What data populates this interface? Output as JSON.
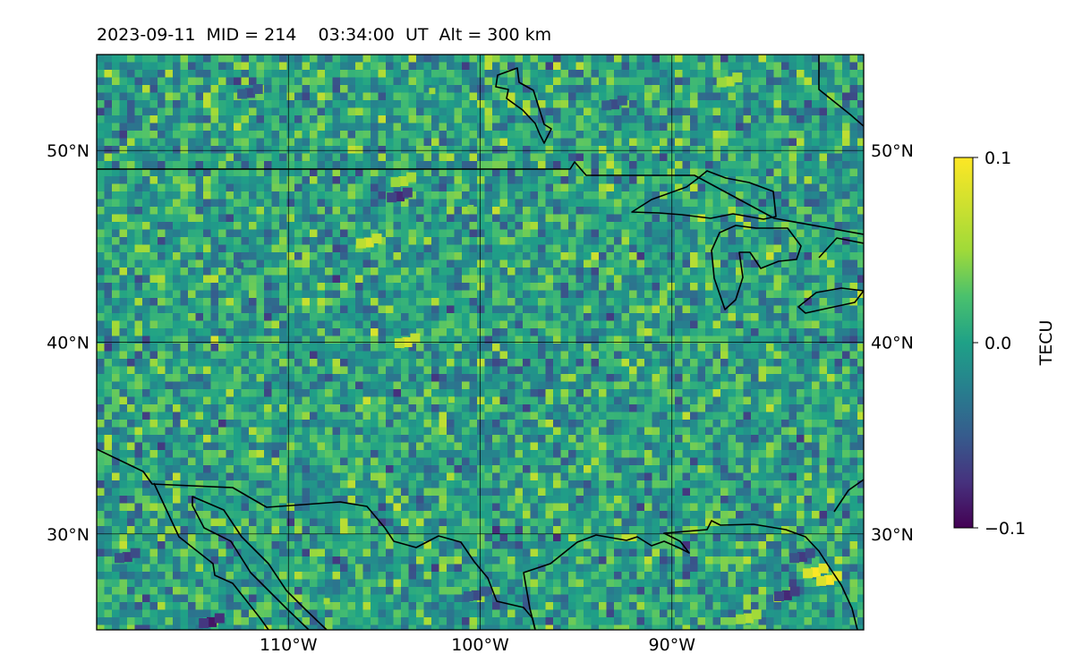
{
  "title": "2023-09-11  MID = 214    03:34:00  UT  Alt = 300 km",
  "chart_data": {
    "type": "heatmap",
    "title": "2023-09-11  MID = 214    03:34:00  UT  Alt = 300 km",
    "x_range": [
      -120,
      -80
    ],
    "y_range": [
      25,
      55
    ],
    "x_ticks": [
      {
        "value": -110,
        "label": "110°W"
      },
      {
        "value": -100,
        "label": "100°W"
      },
      {
        "value": -90,
        "label": "90°W"
      }
    ],
    "y_ticks": [
      {
        "value": 50,
        "label": "50°N"
      },
      {
        "value": 40,
        "label": "40°N"
      },
      {
        "value": 30,
        "label": "30°N"
      }
    ],
    "grid": true,
    "colorbar": {
      "label": "TECU",
      "colormap": "viridis",
      "min": -0.1,
      "max": 0.1,
      "ticks": [
        {
          "value": 0.1,
          "label": "0.1"
        },
        {
          "value": 0.0,
          "label": "0.0"
        },
        {
          "value": -0.1,
          "label": "−0.1"
        }
      ]
    },
    "anomalies": [
      {
        "lon": -87.0,
        "lat": 53.6,
        "value": 0.06
      },
      {
        "lon": -102.5,
        "lat": 53.1,
        "value": 0.05
      },
      {
        "lon": -82.5,
        "lat": 28.0,
        "value": 0.1
      },
      {
        "lon": -81.8,
        "lat": 27.6,
        "value": 0.1
      },
      {
        "lon": -84.0,
        "lat": 26.8,
        "value": -0.08
      },
      {
        "lon": -83.2,
        "lat": 28.8,
        "value": -0.07
      },
      {
        "lon": -86.0,
        "lat": 25.6,
        "value": 0.06
      },
      {
        "lon": -104.2,
        "lat": 47.6,
        "value": -0.08
      },
      {
        "lon": -114.0,
        "lat": 25.4,
        "value": -0.09
      },
      {
        "lon": -118.4,
        "lat": 28.8,
        "value": -0.07
      },
      {
        "lon": -100.2,
        "lat": 26.8,
        "value": -0.06
      },
      {
        "lon": -112.0,
        "lat": 53.0,
        "value": -0.06
      },
      {
        "lon": -93.0,
        "lat": 52.4,
        "value": -0.06
      },
      {
        "lon": -105.8,
        "lat": 45.2,
        "value": 0.08
      },
      {
        "lon": -103.8,
        "lat": 40.0,
        "value": 0.08
      },
      {
        "lon": -104.0,
        "lat": 48.4,
        "value": 0.06
      },
      {
        "lon": -101.5,
        "lat": 37.0,
        "value": 0.05
      },
      {
        "lon": -108.0,
        "lat": 26.5,
        "value": 0.05
      },
      {
        "lon": -100.5,
        "lat": 47.0,
        "value": 0.04
      },
      {
        "lon": -112.5,
        "lat": 44.0,
        "value": -0.05
      }
    ]
  }
}
